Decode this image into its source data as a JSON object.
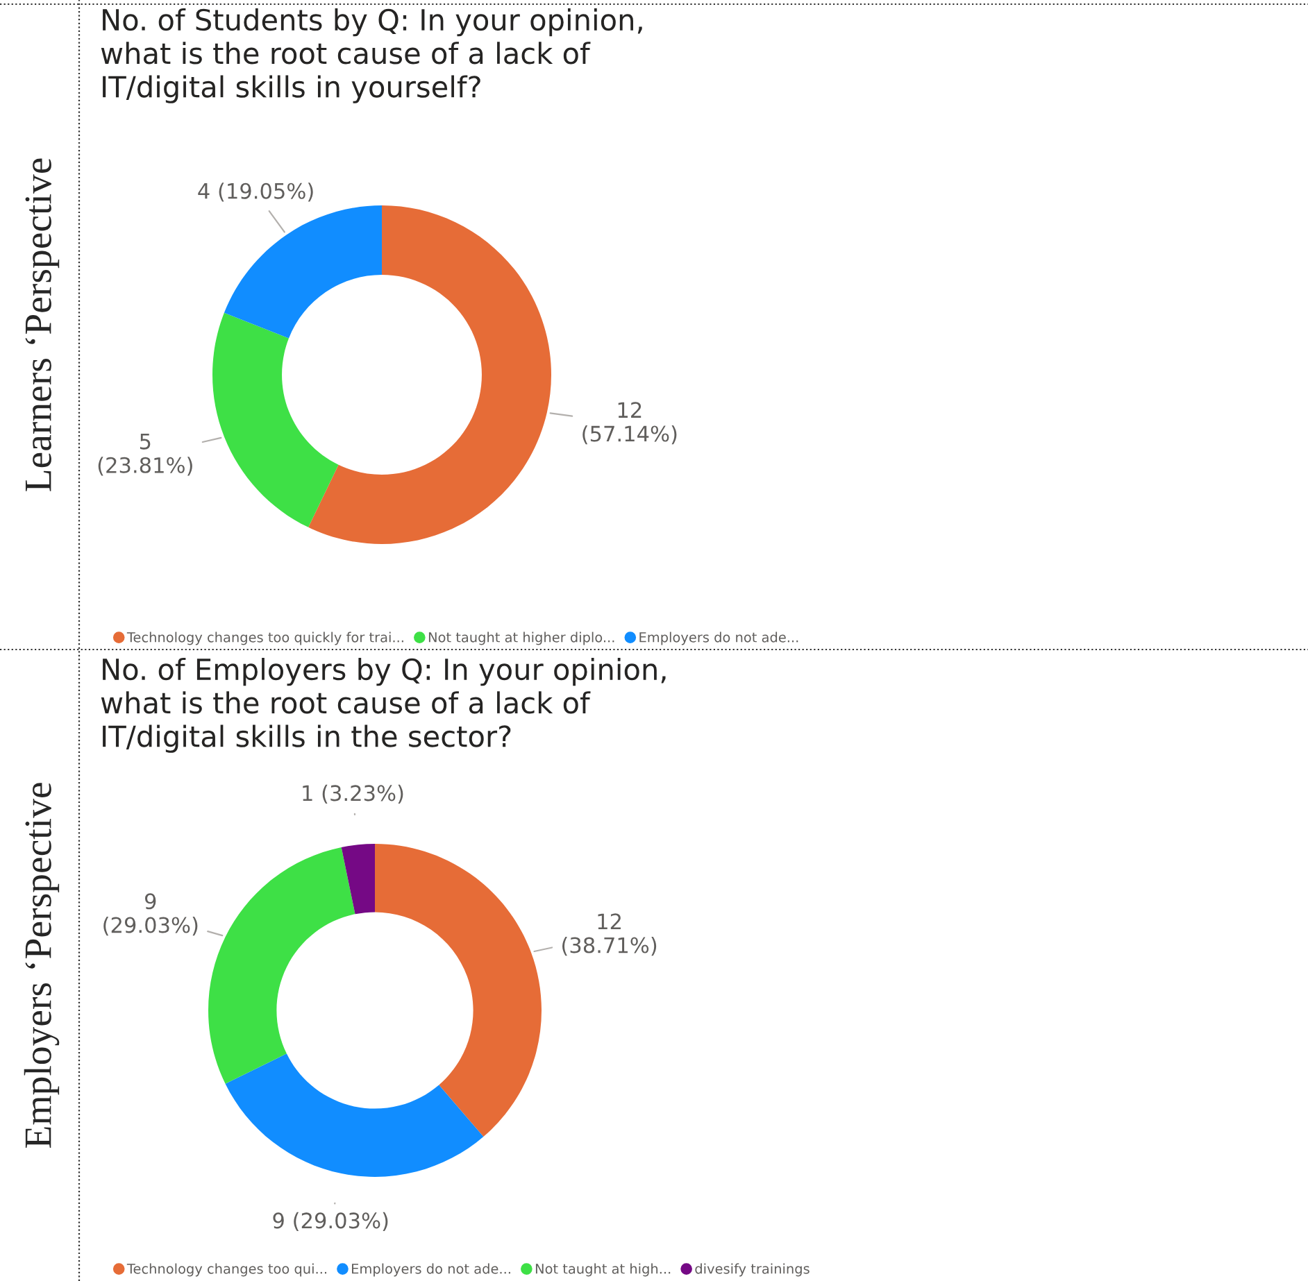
{
  "chart_data": [
    {
      "type": "donut",
      "title": "No. of Students by Q: In your opinion,\nwhat is the root cause of a lack of\nIT/digital skills in yourself?",
      "ylabel": "Learners ‘Perspective",
      "categories": [
        "Technology changes too quickly for trai...",
        "Not taught at higher diplo...",
        "Employers do not ade..."
      ],
      "values": [
        12,
        5,
        4
      ],
      "colors": [
        "#e66c37",
        "#3ee046",
        "#118dff"
      ],
      "value_labels": [
        "12\n(57.14%)",
        "5\n(23.81%)",
        "4 (19.05%)"
      ],
      "legend": "bottom"
    },
    {
      "type": "donut",
      "title": "No. of Employers by Q: In your opinion,\nwhat is the root cause of a lack of\nIT/digital skills in the sector?",
      "ylabel": "Employers ‘Perspective",
      "categories": [
        "Technology changes too qui...",
        "Employers do not ade...",
        "Not taught at high...",
        "divesify trainings"
      ],
      "values": [
        12,
        9,
        9,
        1
      ],
      "colors": [
        "#e66c37",
        "#118dff",
        "#3ee046",
        "#750985"
      ],
      "value_labels": [
        "12\n(38.71%)",
        "9 (29.03%)",
        "9\n(29.03%)",
        "1 (3.23%)"
      ],
      "legend": "bottom"
    }
  ]
}
